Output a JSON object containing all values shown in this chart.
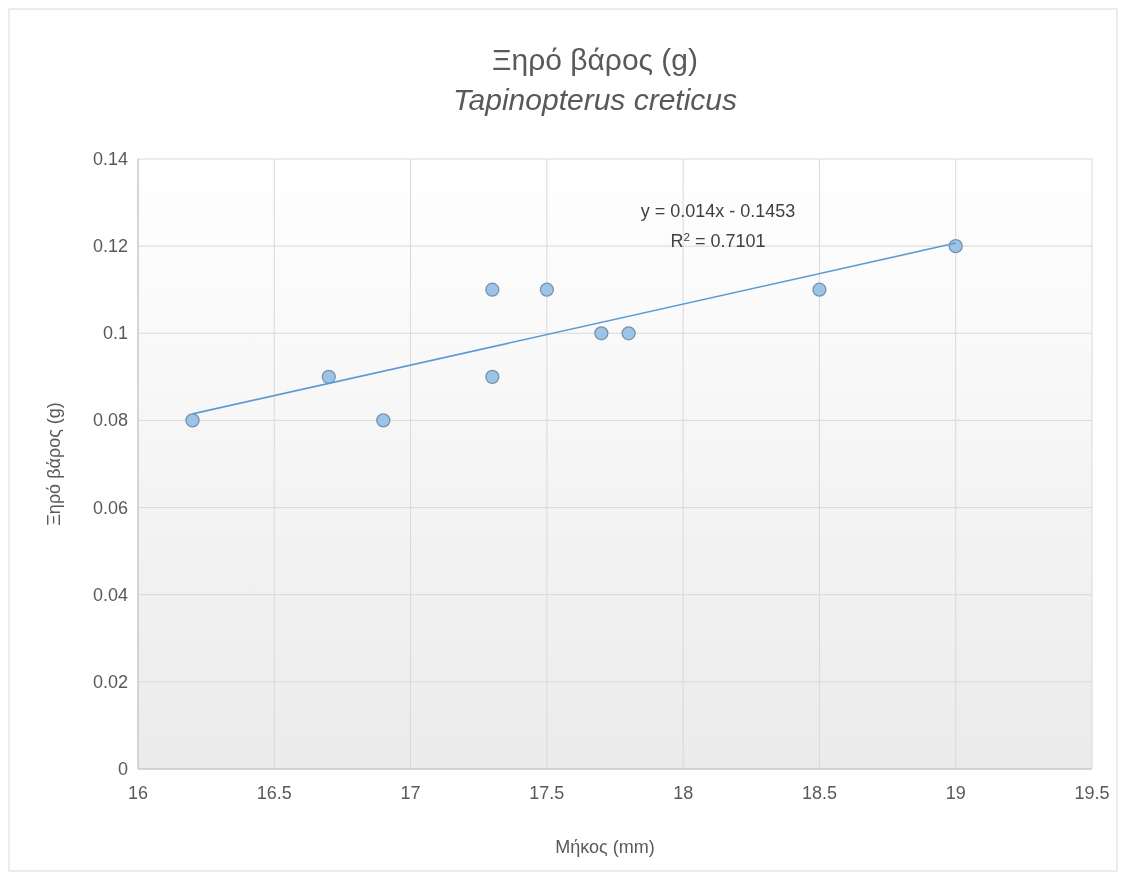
{
  "chart_data": {
    "type": "scatter",
    "title": "Ξηρό βάρος (g)",
    "subtitle": "Tapinopterus creticus",
    "xlabel": "Μήκος (mm)",
    "ylabel": "Ξηρό βάρος (g)",
    "annotations": [
      "y = 0.014x - 0.1453",
      "R$^{2}$ = 0.7101"
    ],
    "series": [
      {
        "color": "#9dc3e6",
        "x": [
          16.2,
          16.7,
          16.9,
          17.3,
          17.3,
          17.5,
          17.7,
          17.8,
          18.5,
          19
        ],
        "values": [
          0.08,
          0.09,
          0.08,
          0.11,
          0.09,
          0.11,
          0.1,
          0.1,
          0.11,
          0.12
        ]
      },
      {
        "type": "line",
        "marker": "none",
        "color": "#5b9bd5",
        "x": [
          16.2,
          19
        ],
        "values": [
          0.0815,
          0.1207
        ]
      }
    ],
    "xlim": [
      16,
      19.5
    ],
    "xticks": [
      16,
      16.5,
      17,
      17.5,
      18,
      18.5,
      19,
      19.5
    ],
    "ylim": [
      0,
      0.14
    ],
    "yticks": [
      0,
      0.02,
      0.04,
      0.06,
      0.08,
      0.1,
      0.12,
      0.14
    ],
    "grid": true,
    "marker": "circle"
  }
}
